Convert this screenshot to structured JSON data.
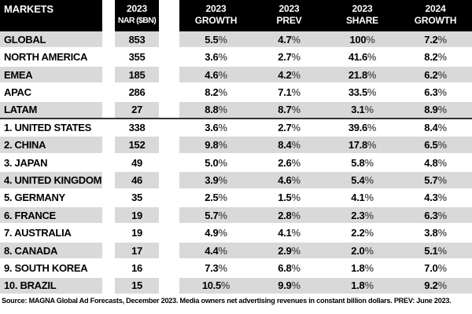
{
  "chart_data": {
    "type": "table",
    "title": "MAGNA Global Ad Forecasts table",
    "columns": [
      {
        "key": "market",
        "line1": "MARKETS",
        "line2": ""
      },
      {
        "key": "nar",
        "line1": "2023",
        "line2": "NAR ($BN)"
      },
      {
        "key": "growth_2023",
        "line1": "2023",
        "line2": "GROWTH"
      },
      {
        "key": "prev_2023",
        "line1": "2023",
        "line2": "PREV"
      },
      {
        "key": "share_2023",
        "line1": "2023",
        "line2": "SHARE"
      },
      {
        "key": "growth_2024",
        "line1": "2024",
        "line2": "GROWTH"
      }
    ],
    "rows": [
      {
        "group": "region",
        "market": "GLOBAL",
        "nar": "853",
        "growth_2023": "5.5%",
        "prev_2023": "4.7%",
        "share_2023": "100%",
        "growth_2024": "7.2%"
      },
      {
        "group": "region",
        "market": "NORTH AMERICA",
        "nar": "355",
        "growth_2023": "3.6%",
        "prev_2023": "2.7%",
        "share_2023": "41.6%",
        "growth_2024": "8.2%"
      },
      {
        "group": "region",
        "market": "EMEA",
        "nar": "185",
        "growth_2023": "4.6%",
        "prev_2023": "4.2%",
        "share_2023": "21.8%",
        "growth_2024": "6.2%"
      },
      {
        "group": "region",
        "market": "APAC",
        "nar": "286",
        "growth_2023": "8.2%",
        "prev_2023": "7.1%",
        "share_2023": "33.5%",
        "growth_2024": "6.3%"
      },
      {
        "group": "region",
        "market": "LATAM",
        "nar": "27",
        "growth_2023": "8.8%",
        "prev_2023": "8.7%",
        "share_2023": "3.1%",
        "growth_2024": "8.9%"
      },
      {
        "group": "country",
        "market": "1. UNITED STATES",
        "nar": "338",
        "growth_2023": "3.6%",
        "prev_2023": "2.7%",
        "share_2023": "39.6%",
        "growth_2024": "8.4%"
      },
      {
        "group": "country",
        "market": "2. CHINA",
        "nar": "152",
        "growth_2023": "9.8%",
        "prev_2023": "8.4%",
        "share_2023": "17.8%",
        "growth_2024": "6.5%"
      },
      {
        "group": "country",
        "market": "3. JAPAN",
        "nar": "49",
        "growth_2023": "5.0%",
        "prev_2023": "2.6%",
        "share_2023": "5.8%",
        "growth_2024": "4.8%"
      },
      {
        "group": "country",
        "market": "4. UNITED KINGDOM",
        "nar": "46",
        "growth_2023": "3.9%",
        "prev_2023": "4.6%",
        "share_2023": "5.4%",
        "growth_2024": "5.7%"
      },
      {
        "group": "country",
        "market": "5. GERMANY",
        "nar": "35",
        "growth_2023": "2.5%",
        "prev_2023": "1.5%",
        "share_2023": "4.1%",
        "growth_2024": "4.3%"
      },
      {
        "group": "country",
        "market": "6. FRANCE",
        "nar": "19",
        "growth_2023": "5.7%",
        "prev_2023": "2.8%",
        "share_2023": "2.3%",
        "growth_2024": "6.3%"
      },
      {
        "group": "country",
        "market": "7. AUSTRALIA",
        "nar": "19",
        "growth_2023": "4.9%",
        "prev_2023": "4.1%",
        "share_2023": "2.2%",
        "growth_2024": "3.8%"
      },
      {
        "group": "country",
        "market": "8. CANADA",
        "nar": "17",
        "growth_2023": "4.4%",
        "prev_2023": "2.9%",
        "share_2023": "2.0%",
        "growth_2024": "5.1%"
      },
      {
        "group": "country",
        "market": "9. SOUTH KOREA",
        "nar": "16",
        "growth_2023": "7.3%",
        "prev_2023": "6.8%",
        "share_2023": "1.8%",
        "growth_2024": "7.0%"
      },
      {
        "group": "country",
        "market": "10. BRAZIL",
        "nar": "15",
        "growth_2023": "10.5%",
        "prev_2023": "9.9%",
        "share_2023": "1.8%",
        "growth_2024": "9.2%"
      }
    ]
  },
  "footer": {
    "source_note": "Source: MAGNA Global Ad Forecasts, December 2023. Media owners net advertising revenues in constant billion dollars. PREV: June 2023."
  },
  "colors": {
    "header_bg": "#000000",
    "header_text": "#ffffff",
    "row_alt_bg": "#d9d9d9",
    "row_bg": "#ffffff",
    "text": "#000000",
    "percent_sign": "#58595b",
    "divider_line": "#333333"
  }
}
